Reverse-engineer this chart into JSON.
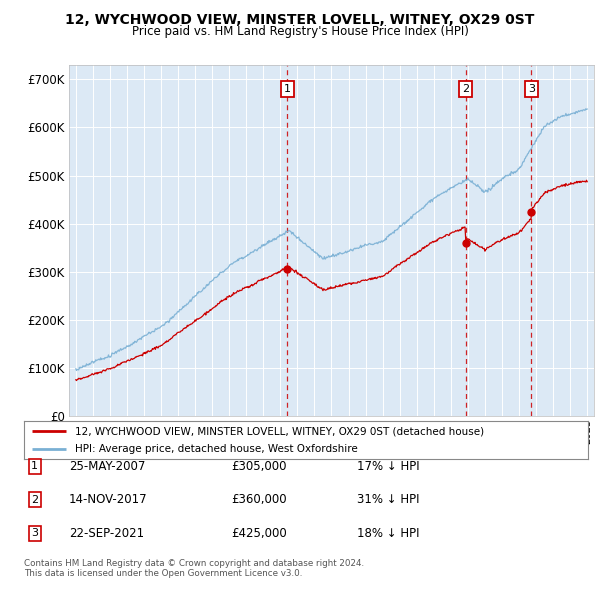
{
  "title1": "12, WYCHWOOD VIEW, MINSTER LOVELL, WITNEY, OX29 0ST",
  "title2": "Price paid vs. HM Land Registry's House Price Index (HPI)",
  "legend_label_red": "12, WYCHWOOD VIEW, MINSTER LOVELL, WITNEY, OX29 0ST (detached house)",
  "legend_label_blue": "HPI: Average price, detached house, West Oxfordshire",
  "footer1": "Contains HM Land Registry data © Crown copyright and database right 2024.",
  "footer2": "This data is licensed under the Open Government Licence v3.0.",
  "transactions": [
    {
      "num": 1,
      "date": "25-MAY-2007",
      "price": 305000,
      "pct": "17%",
      "dir": "↓",
      "x": 2007.4
    },
    {
      "num": 2,
      "date": "14-NOV-2017",
      "price": 360000,
      "pct": "31%",
      "dir": "↓",
      "x": 2017.87
    },
    {
      "num": 3,
      "date": "22-SEP-2021",
      "price": 425000,
      "pct": "18%",
      "dir": "↓",
      "x": 2021.72
    }
  ],
  "ylabel_ticks": [
    "£0",
    "£100K",
    "£200K",
    "£300K",
    "£400K",
    "£500K",
    "£600K",
    "£700K"
  ],
  "ytick_values": [
    0,
    100000,
    200000,
    300000,
    400000,
    500000,
    600000,
    700000
  ],
  "ylim": [
    0,
    730000
  ],
  "xlim_start": 1994.6,
  "xlim_end": 2025.4,
  "background_color": "#dce9f5",
  "grid_color": "#ffffff",
  "red_color": "#cc0000",
  "blue_color": "#7ab0d4",
  "marker_box_color": "#cc0000",
  "trans1_x": 2007.4,
  "trans1_y": 305000,
  "trans2_x": 2017.87,
  "trans2_y": 360000,
  "trans3_x": 2021.72,
  "trans3_y": 425000
}
